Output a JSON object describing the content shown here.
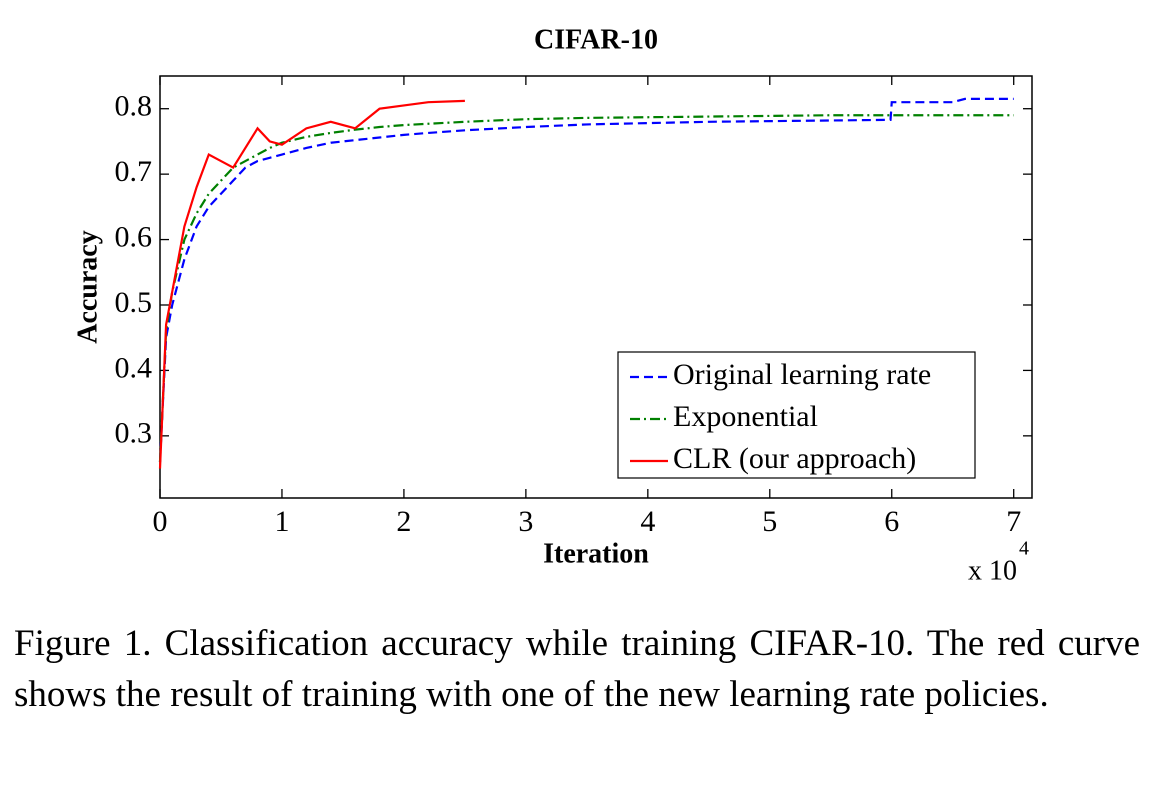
{
  "chart_data": {
    "type": "line",
    "title": "CIFAR-10",
    "x_label": "Iteration",
    "y_label": "Accuracy",
    "x_multiplier": {
      "base": "x 10",
      "exponent": "4"
    },
    "x": [
      0,
      0.05,
      0.1,
      0.2,
      0.3,
      0.4,
      0.5,
      0.6,
      0.7,
      0.8,
      0.9,
      1.0,
      1.2,
      1.4,
      1.6,
      1.8,
      2.0,
      2.2,
      2.5,
      3.0,
      3.5,
      4.0,
      4.5,
      5.0,
      5.5,
      5.99,
      6.0,
      6.5,
      6.6,
      7.0
    ],
    "series": [
      {
        "name": "Original learning rate",
        "color": "#0000ff",
        "style": "dashed",
        "values": [
          0.26,
          0.45,
          0.5,
          0.57,
          0.62,
          0.65,
          0.67,
          0.69,
          0.71,
          0.72,
          0.725,
          0.73,
          0.74,
          0.748,
          0.752,
          0.756,
          0.76,
          0.763,
          0.767,
          0.772,
          0.776,
          0.778,
          0.78,
          0.781,
          0.782,
          0.783,
          0.81,
          0.81,
          0.815,
          0.815
        ]
      },
      {
        "name": "Exponential",
        "color": "#008000",
        "style": "dashdot",
        "values": [
          0.26,
          0.46,
          0.52,
          0.6,
          0.64,
          0.67,
          0.69,
          0.71,
          0.72,
          0.73,
          0.74,
          0.748,
          0.757,
          0.763,
          0.768,
          0.772,
          0.775,
          0.777,
          0.78,
          0.784,
          0.786,
          0.787,
          0.788,
          0.789,
          0.79,
          0.79,
          0.79,
          0.79,
          0.79,
          0.79
        ]
      },
      {
        "name": "CLR (our approach)",
        "color": "#ff0000",
        "style": "solid",
        "values": [
          0.25,
          0.47,
          0.52,
          0.62,
          0.68,
          0.73,
          0.72,
          0.71,
          0.74,
          0.77,
          0.75,
          0.745,
          0.77,
          0.78,
          0.77,
          0.8,
          0.805,
          0.81,
          0.812,
          null,
          null,
          null,
          null,
          null,
          null,
          null,
          null,
          null,
          null,
          null
        ]
      }
    ],
    "xlim": [
      0,
      7.15
    ],
    "xticks": [
      0,
      1,
      2,
      3,
      4,
      5,
      6,
      7
    ],
    "ylim": [
      0.205,
      0.85
    ],
    "yticks": [
      0.3,
      0.4,
      0.5,
      0.6,
      0.7,
      0.8
    ],
    "grid": false,
    "legend": "lower right"
  },
  "caption": "Figure 1. Classification accuracy while training CIFAR-10. The red curve shows the result of training with one of the new learning rate policies."
}
